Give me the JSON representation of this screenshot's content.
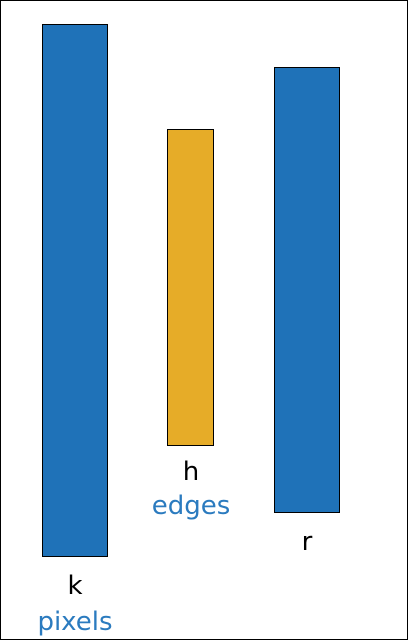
{
  "colors": {
    "blue": "#1f72b8",
    "orange": "#e6ac28",
    "sub_label": "#2b7bbf",
    "border": "#000000"
  },
  "bars": [
    {
      "label": "k",
      "sublabel": "pixels",
      "color": "blue"
    },
    {
      "label": "h",
      "sublabel": "edges",
      "color": "orange"
    },
    {
      "label": "r",
      "sublabel": "",
      "color": "blue"
    }
  ]
}
